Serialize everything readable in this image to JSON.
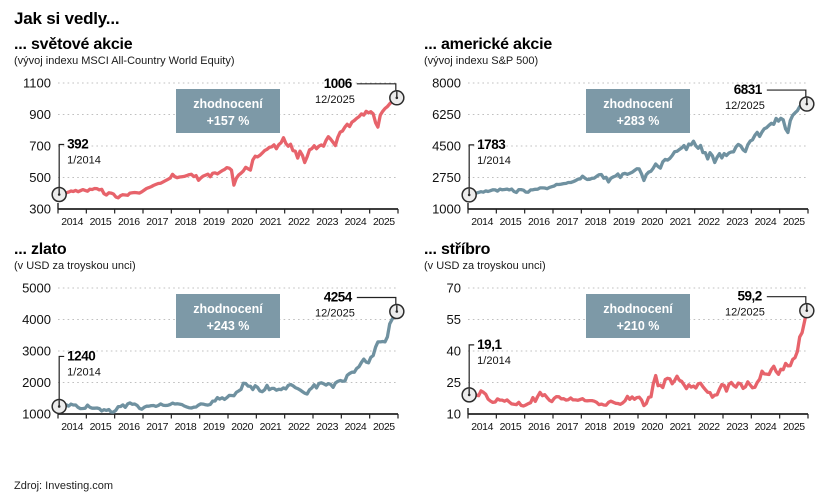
{
  "page": {
    "title": "Jak si vedly...",
    "source": "Zdroj: Investing.com"
  },
  "colors": {
    "red": "#e7636b",
    "slate": "#6f91a0",
    "badge_bg": "#7d99a7",
    "badge_text": "#ffffff",
    "grid": "#c0c0c0",
    "axis": "#222222",
    "marker_fill": "#ececec",
    "marker_stroke": "#2b2b2b",
    "text": "#111111"
  },
  "chart_data": [
    {
      "type": "line",
      "title": "... světové akcie",
      "subtitle": "(vývoj indexu MSCI All-Country World Equity)",
      "series_name": "MSCI All-Country World Equity",
      "line_color": "#e7636b",
      "x_frequency": "monthly",
      "x_range": [
        "1/2014",
        "12/2025"
      ],
      "x_tick_labels": [
        "2014",
        "2015",
        "2016",
        "2017",
        "2018",
        "2019",
        "2020",
        "2021",
        "2022",
        "2023",
        "2024",
        "2025"
      ],
      "ylim": [
        300,
        1100
      ],
      "y_ticks": [
        300,
        500,
        700,
        900,
        1100
      ],
      "values": [
        392,
        397,
        400,
        403,
        407,
        414,
        411,
        418,
        410,
        416,
        423,
        418,
        413,
        426,
        424,
        430,
        429,
        421,
        425,
        397,
        389,
        403,
        401,
        395,
        377,
        371,
        385,
        391,
        389,
        387,
        401,
        403,
        405,
        403,
        401,
        409,
        420,
        430,
        436,
        442,
        450,
        456,
        462,
        464,
        472,
        480,
        488,
        496,
        520,
        505,
        499,
        503,
        505,
        507,
        512,
        518,
        520,
        506,
        512,
        482,
        497,
        509,
        515,
        521,
        505,
        527,
        529,
        523,
        533,
        543,
        551,
        563,
        559,
        547,
        452,
        495,
        515,
        527,
        541,
        565,
        555,
        547,
        611,
        635,
        631,
        641,
        655,
        671,
        679,
        691,
        695,
        707,
        683,
        709,
        721,
        753,
        717,
        699,
        711,
        671,
        667,
        623,
        667,
        641,
        595,
        631,
        675,
        683,
        701,
        683,
        699,
        707,
        699,
        735,
        759,
        743,
        723,
        703,
        755,
        788,
        795,
        820,
        838,
        824,
        852,
        862,
        876,
        886,
        904,
        896,
        920,
        910,
        918,
        904,
        848,
        820,
        896,
        920,
        938,
        950,
        968,
        984,
        992,
        1006
      ],
      "annotations": {
        "start": {
          "label": "392",
          "date": "1/2014",
          "value": 392
        },
        "end": {
          "label": "1006",
          "date": "12/2025",
          "value": 1006
        }
      },
      "badge": {
        "label": "zhodnocení",
        "value": "+157 %"
      }
    },
    {
      "type": "line",
      "title": "... americké akcie",
      "subtitle": "(vývoj indexu S&P 500)",
      "series_name": "S&P 500",
      "line_color": "#6f91a0",
      "x_frequency": "monthly",
      "x_range": [
        "1/2014",
        "12/2025"
      ],
      "x_tick_labels": [
        "2014",
        "2015",
        "2016",
        "2017",
        "2018",
        "2019",
        "2020",
        "2021",
        "2022",
        "2023",
        "2024",
        "2025"
      ],
      "ylim": [
        1000,
        8000
      ],
      "y_ticks": [
        1000,
        2750,
        4500,
        6250,
        8000
      ],
      "values": [
        1783,
        1859,
        1872,
        1884,
        1924,
        1960,
        1931,
        2003,
        1972,
        2018,
        2068,
        2059,
        1995,
        2105,
        2068,
        2086,
        2107,
        2063,
        2104,
        1972,
        1920,
        2079,
        2080,
        2044,
        1940,
        1932,
        2060,
        2065,
        2097,
        2099,
        2174,
        2171,
        2168,
        2126,
        2199,
        2239,
        2279,
        2364,
        2363,
        2384,
        2412,
        2423,
        2470,
        2472,
        2519,
        2575,
        2648,
        2674,
        2824,
        2714,
        2641,
        2648,
        2705,
        2718,
        2816,
        2902,
        2914,
        2712,
        2760,
        2507,
        2704,
        2784,
        2834,
        2946,
        2752,
        2942,
        2980,
        2926,
        2977,
        3038,
        3141,
        3231,
        3226,
        2954,
        2585,
        2912,
        3044,
        3100,
        3271,
        3500,
        3363,
        3270,
        3622,
        3756,
        3714,
        3811,
        3973,
        4181,
        4204,
        4298,
        4395,
        4523,
        4308,
        4605,
        4567,
        4766,
        4516,
        4374,
        4530,
        4132,
        4132,
        3785,
        4130,
        3955,
        3586,
        3872,
        4080,
        3840,
        4077,
        3970,
        4109,
        4169,
        4180,
        4450,
        4589,
        4508,
        4288,
        4194,
        4568,
        4770,
        4846,
        5096,
        5254,
        5036,
        5278,
        5460,
        5522,
        5648,
        5762,
        5705,
        6032,
        5882,
        6041,
        5955,
        5450,
        5250,
        5912,
        6205,
        6340,
        6460,
        6688,
        6740,
        6780,
        6831
      ],
      "annotations": {
        "start": {
          "label": "1783",
          "date": "1/2014",
          "value": 1783
        },
        "end": {
          "label": "6831",
          "date": "12/2025",
          "value": 6831
        }
      },
      "badge": {
        "label": "zhodnocení",
        "value": "+283 %"
      }
    },
    {
      "type": "line",
      "title": "... zlato",
      "subtitle": "(v USD za troyskou unci)",
      "series_name": "Gold (USD/oz t)",
      "line_color": "#6f91a0",
      "x_frequency": "monthly",
      "x_range": [
        "1/2014",
        "12/2025"
      ],
      "x_tick_labels": [
        "2014",
        "2015",
        "2016",
        "2017",
        "2018",
        "2019",
        "2020",
        "2021",
        "2022",
        "2023",
        "2024",
        "2025"
      ],
      "ylim": [
        1000,
        5000
      ],
      "y_ticks": [
        1000,
        2000,
        3000,
        4000,
        5000
      ],
      "values": [
        1240,
        1326,
        1284,
        1288,
        1250,
        1315,
        1285,
        1287,
        1208,
        1173,
        1175,
        1184,
        1283,
        1213,
        1183,
        1184,
        1191,
        1171,
        1095,
        1135,
        1114,
        1142,
        1065,
        1060,
        1118,
        1234,
        1237,
        1290,
        1212,
        1322,
        1351,
        1309,
        1317,
        1272,
        1178,
        1152,
        1212,
        1248,
        1249,
        1268,
        1269,
        1242,
        1269,
        1321,
        1280,
        1271,
        1275,
        1303,
        1345,
        1318,
        1325,
        1315,
        1298,
        1253,
        1224,
        1201,
        1192,
        1215,
        1222,
        1282,
        1321,
        1313,
        1292,
        1283,
        1306,
        1409,
        1414,
        1520,
        1472,
        1513,
        1464,
        1517,
        1589,
        1586,
        1577,
        1687,
        1730,
        1781,
        1976,
        1968,
        1886,
        1879,
        1777,
        1898,
        1848,
        1734,
        1708,
        1768,
        1907,
        1770,
        1814,
        1814,
        1757,
        1784,
        1775,
        1829,
        1797,
        1909,
        1937,
        1897,
        1837,
        1807,
        1766,
        1711,
        1661,
        1634,
        1769,
        1824,
        1928,
        1827,
        1969,
        1990,
        1963,
        1919,
        1965,
        1940,
        1849,
        1984,
        2036,
        2063,
        2040,
        2044,
        2230,
        2286,
        2327,
        2327,
        2448,
        2503,
        2635,
        2744,
        2651,
        2625,
        2798,
        2858,
        3123,
        3289,
        3289,
        3303,
        3290,
        3448,
        3859,
        4002,
        4150,
        4254
      ],
      "annotations": {
        "start": {
          "label": "1240",
          "date": "1/2014",
          "value": 1240
        },
        "end": {
          "label": "4254",
          "date": "12/2025",
          "value": 4254
        }
      },
      "badge": {
        "label": "zhodnocení",
        "value": "+243 %"
      }
    },
    {
      "type": "line",
      "title": "... stříbro",
      "subtitle": "(v USD za troyskou unci)",
      "series_name": "Silver (USD/oz t)",
      "line_color": "#e7636b",
      "x_frequency": "monthly",
      "x_range": [
        "1/2014",
        "12/2025"
      ],
      "x_tick_labels": [
        "2014",
        "2015",
        "2016",
        "2017",
        "2018",
        "2019",
        "2020",
        "2021",
        "2022",
        "2023",
        "2024",
        "2025"
      ],
      "ylim": [
        10,
        70
      ],
      "y_ticks": [
        10,
        25,
        40,
        55,
        70
      ],
      "values": [
        19.1,
        21.2,
        19.8,
        19.0,
        18.7,
        21.0,
        20.4,
        19.4,
        17.1,
        16.2,
        15.5,
        15.7,
        17.2,
        16.6,
        16.6,
        16.1,
        16.7,
        15.7,
        14.8,
        14.6,
        14.5,
        15.5,
        14.1,
        13.8,
        14.3,
        14.9,
        15.4,
        17.8,
        16.0,
        18.4,
        20.3,
        18.7,
        19.2,
        17.8,
        16.5,
        15.9,
        17.5,
        18.3,
        18.2,
        17.2,
        17.3,
        16.6,
        16.8,
        17.6,
        16.7,
        16.7,
        16.5,
        16.9,
        17.3,
        16.4,
        16.3,
        16.4,
        16.4,
        16.1,
        15.5,
        14.5,
        14.7,
        14.3,
        14.2,
        15.5,
        16.1,
        15.6,
        15.1,
        15.0,
        14.6,
        15.3,
        16.3,
        18.4,
        17.0,
        18.1,
        17.0,
        17.8,
        18.0,
        16.7,
        14.0,
        15.0,
        17.9,
        18.2,
        24.4,
        28.3,
        23.5,
        23.7,
        22.6,
        26.4,
        27.0,
        26.7,
        24.4,
        25.9,
        28.0,
        26.1,
        25.5,
        23.9,
        22.1,
        23.9,
        22.8,
        23.3,
        22.4,
        24.4,
        24.6,
        23.0,
        21.6,
        20.4,
        20.2,
        18.0,
        19.0,
        19.2,
        21.9,
        24.0,
        23.6,
        20.9,
        24.1,
        25.0,
        23.6,
        22.8,
        24.7,
        24.4,
        22.2,
        22.9,
        25.3,
        23.8,
        22.5,
        22.7,
        25.0,
        26.5,
        30.4,
        29.1,
        29.0,
        28.8,
        31.2,
        32.7,
        30.3,
        28.9,
        31.3,
        31.1,
        34.1,
        32.9,
        33.0,
        36.0,
        36.8,
        39.8,
        46.7,
        48.7,
        54.0,
        59.2
      ],
      "annotations": {
        "start": {
          "label": "19,1",
          "date": "1/2014",
          "value": 19.1
        },
        "end": {
          "label": "59,2",
          "date": "12/2025",
          "value": 59.2
        }
      },
      "badge": {
        "label": "zhodnocení",
        "value": "+210 %"
      }
    }
  ]
}
